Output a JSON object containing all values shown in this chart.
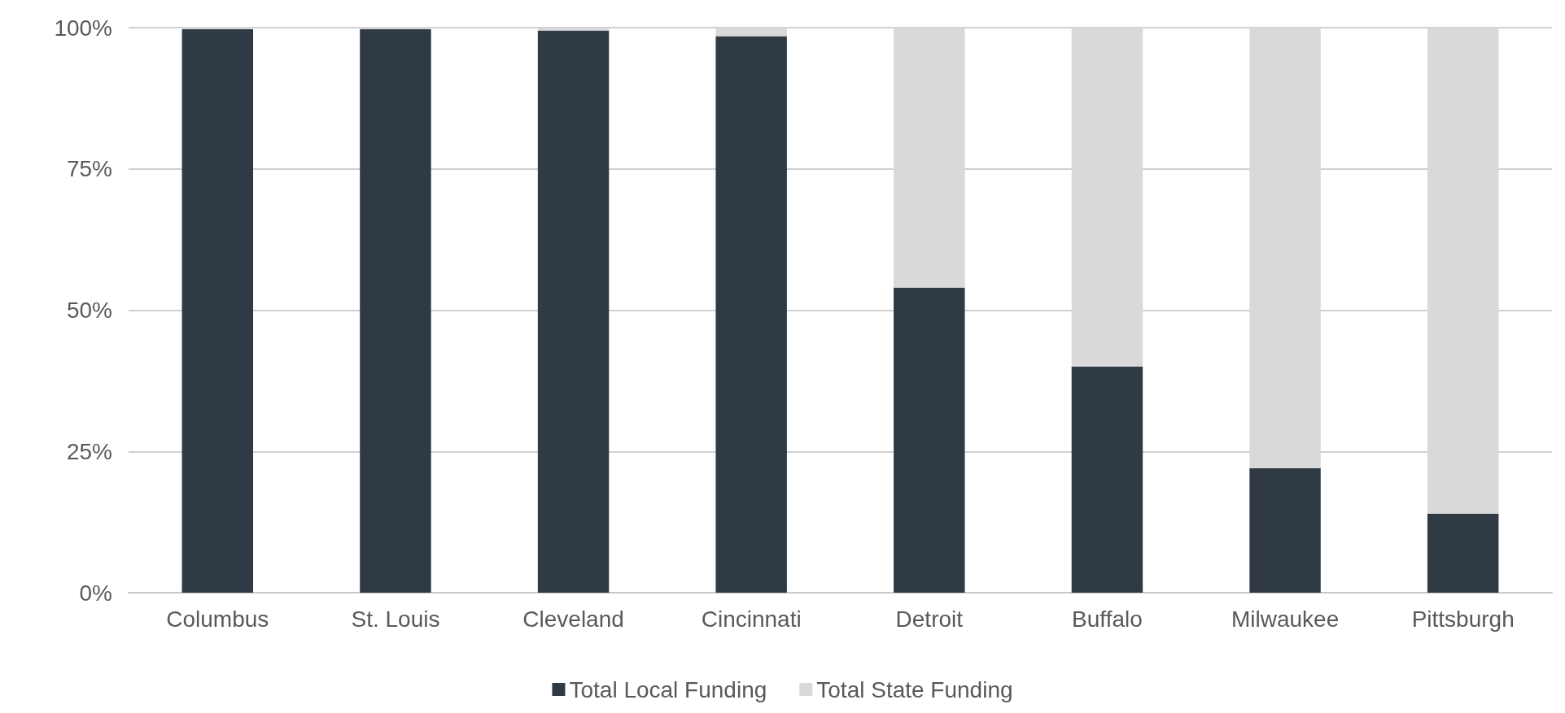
{
  "chart_data": {
    "type": "bar",
    "stacked": true,
    "categories": [
      "Columbus",
      "St. Louis",
      "Cleveland",
      "Cincinnati",
      "Detroit",
      "Buffalo",
      "Milwaukee",
      "Pittsburgh"
    ],
    "series": [
      {
        "name": "Total Local Funding",
        "color": "#2f3a45",
        "values": [
          99.7,
          99.7,
          99.5,
          98.5,
          54,
          40,
          22,
          14
        ]
      },
      {
        "name": "Total State Funding",
        "color": "#d9d9d9",
        "values": [
          0.3,
          0.3,
          0.5,
          1.5,
          46,
          60,
          78,
          86
        ]
      }
    ],
    "ylim": [
      0,
      100
    ],
    "yticks": [
      {
        "value": 0,
        "label": "0%"
      },
      {
        "value": 25,
        "label": "25%"
      },
      {
        "value": 50,
        "label": "50%"
      },
      {
        "value": 75,
        "label": "75%"
      },
      {
        "value": 100,
        "label": "100%"
      }
    ],
    "grid": "y",
    "legend": "bottom"
  }
}
